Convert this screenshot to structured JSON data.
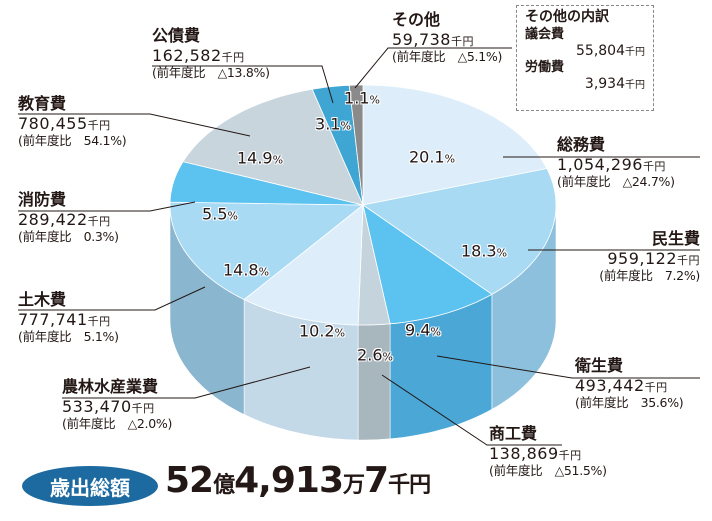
{
  "chart_data": {
    "type": "pie",
    "title": "歳出総額",
    "unit": "千円",
    "slices": [
      {
        "name": "総務費",
        "value": 1054296,
        "percent": "20.1",
        "change": "(前年度比　△24.7%)",
        "color": "#ddeefa",
        "side": "#b8d3e6"
      },
      {
        "name": "民生費",
        "value": 959122,
        "percent": "18.3",
        "change": "(前年度比　7.2%)",
        "color": "#a9daf4",
        "side": "#8cc0dc"
      },
      {
        "name": "衛生費",
        "value": 493442,
        "percent": "9.4",
        "change": "(前年度比　35.6%)",
        "color": "#5cc2ef",
        "side": "#4aa7d6"
      },
      {
        "name": "商工費",
        "value": 138869,
        "percent": "2.6",
        "change": "(前年度比　△51.5%)",
        "color": "#c5d4dc",
        "side": "#a8b6be"
      },
      {
        "name": "農林水産業費",
        "value": 533470,
        "percent": "10.2",
        "change": "(前年度比　△2.0%)",
        "color": "#ddeefa",
        "side": "#c4d9e8"
      },
      {
        "name": "土木費",
        "value": 777741,
        "percent": "14.8",
        "change": "(前年度比　5.1%)",
        "color": "#a9daf4",
        "side": "#8ab6d0"
      },
      {
        "name": "消防費",
        "value": 289422,
        "percent": "5.5",
        "change": "(前年度比　0.3%)",
        "color": "#5cc2ef",
        "side": "#4aa7d6"
      },
      {
        "name": "教育費",
        "value": 780455,
        "percent": "14.9",
        "change": "(前年度比　54.1%)",
        "color": "#c8d5dd",
        "side": "#a8b6be"
      },
      {
        "name": "公債費",
        "value": 162582,
        "percent": "3.1",
        "change": "(前年度比　△13.8%)",
        "color": "#3fa5d3",
        "side": "#2f8ab8"
      },
      {
        "name": "その他",
        "value": 59738,
        "percent": "1.1",
        "change": "(前年度比　△5.1%)",
        "color": "#8a8a8a",
        "side": "#6e6e6e"
      }
    ]
  },
  "labels": {
    "value_fmt": [
      "1,054,296",
      "959,122",
      "493,442",
      "138,869",
      "533,470",
      "777,741",
      "289,422",
      "780,455",
      "162,582",
      "59,738"
    ],
    "unit": "千円",
    "pct_sign": "%"
  },
  "others_box": {
    "title": "その他の内訳",
    "items": [
      {
        "name": "議会費",
        "value": "55,804",
        "unit": "千円"
      },
      {
        "name": "労働費",
        "value": "3,934",
        "unit": "千円"
      }
    ]
  },
  "total": {
    "label": "歳出総額",
    "oku": "52",
    "oku_unit": "億",
    "man": "4,913",
    "man_unit": "万",
    "sen": "7",
    "sen_unit": "千円"
  }
}
